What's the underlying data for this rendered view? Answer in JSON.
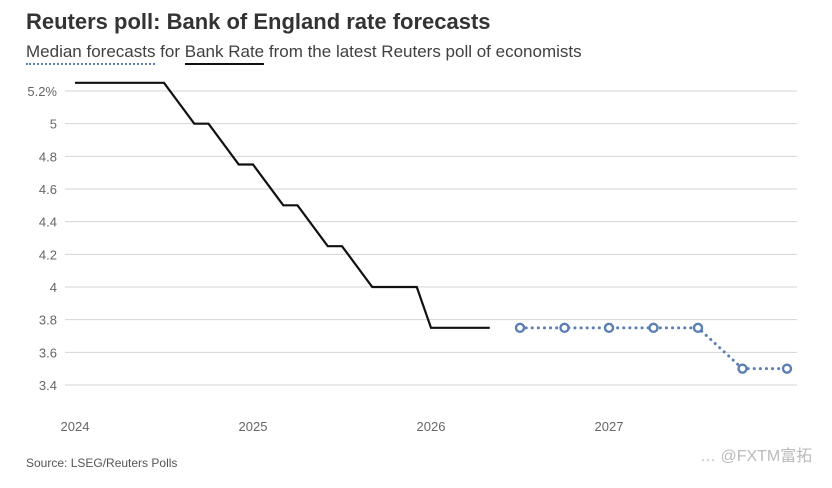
{
  "header": {
    "title": "Reuters poll: Bank of England rate forecasts",
    "subtitle_prefix": "",
    "legend_median": "Median forecasts",
    "subtitle_for": " for ",
    "legend_bank": "Bank Rate",
    "subtitle_rest": " from the latest Reuters poll of economists"
  },
  "source": "Source: LSEG/Reuters Polls",
  "watermark": "… @FXTM富拓",
  "colors": {
    "bank_rate": "#111111",
    "forecast": "#5b7fb4",
    "grid": "#d4d4d4",
    "axis_text": "#666666"
  },
  "chart_data": {
    "type": "line",
    "title": "Reuters poll: Bank of England rate forecasts",
    "ylabel": "",
    "xlabel": "",
    "ylim": [
      3.3,
      5.25
    ],
    "xlim": [
      2024.0,
      2028.0
    ],
    "y_ticks": [
      3.4,
      3.6,
      3.8,
      4,
      4.2,
      4.4,
      4.6,
      4.8,
      5,
      5.2
    ],
    "y_tick_labels": [
      "3.4",
      "3.6",
      "3.8",
      "4",
      "4.2",
      "4.4",
      "4.6",
      "4.8",
      "5",
      "5.2%"
    ],
    "x_ticks": [
      2024,
      2025,
      2026,
      2027
    ],
    "x_tick_labels": [
      "2024",
      "2025",
      "2026",
      "2027"
    ],
    "grid": true,
    "series": [
      {
        "name": "Bank Rate",
        "style": "solid",
        "points": [
          [
            2024.0,
            5.25
          ],
          [
            2024.5,
            5.25
          ],
          [
            2024.67,
            5.0
          ],
          [
            2024.75,
            5.0
          ],
          [
            2024.92,
            4.75
          ],
          [
            2025.0,
            4.75
          ],
          [
            2025.17,
            4.5
          ],
          [
            2025.25,
            4.5
          ],
          [
            2025.42,
            4.25
          ],
          [
            2025.5,
            4.25
          ],
          [
            2025.67,
            4.0
          ],
          [
            2025.92,
            4.0
          ],
          [
            2026.0,
            3.75
          ],
          [
            2026.33,
            3.75
          ]
        ]
      },
      {
        "name": "Median forecasts",
        "style": "dotted",
        "points": [
          [
            2026.5,
            3.75
          ],
          [
            2026.75,
            3.75
          ],
          [
            2027.0,
            3.75
          ],
          [
            2027.25,
            3.75
          ],
          [
            2027.5,
            3.75
          ],
          [
            2027.75,
            3.5
          ],
          [
            2028.0,
            3.5
          ]
        ]
      }
    ]
  }
}
